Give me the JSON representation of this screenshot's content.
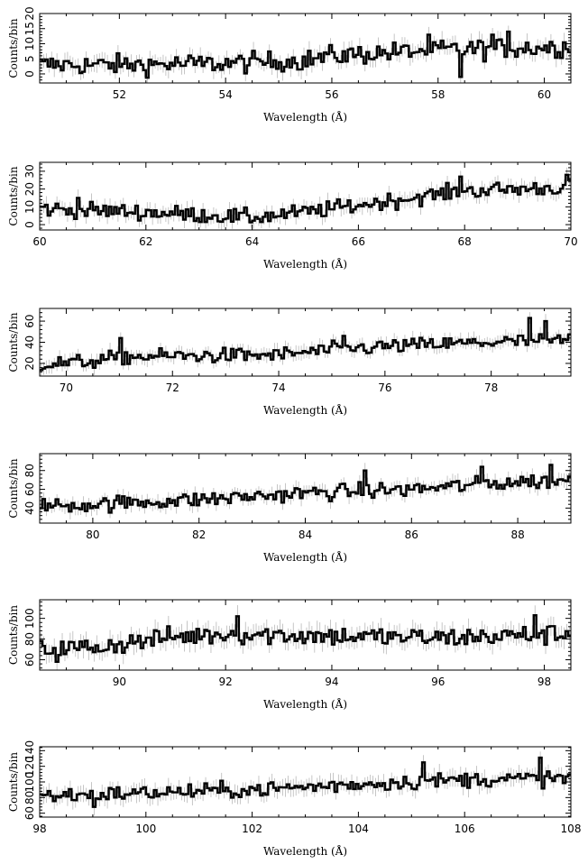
{
  "chart_data": [
    {
      "type": "line",
      "style": "step-histogram-with-error-bars",
      "xlabel": "Wavelength (Å)",
      "ylabel": "Counts/bin",
      "xlim": [
        50.5,
        60.5
      ],
      "ylim": [
        -3,
        20
      ],
      "x_ticks": [
        52,
        54,
        56,
        58,
        60
      ],
      "y_ticks": [
        0,
        5,
        10,
        15,
        20
      ],
      "y_tick_labels": [
        "0",
        "5",
        "10",
        "15",
        "20"
      ],
      "bin_width": 0.05,
      "trend": [
        [
          50.5,
          3
        ],
        [
          52,
          3
        ],
        [
          54,
          3.5
        ],
        [
          55.5,
          4.5
        ],
        [
          56,
          6
        ],
        [
          58,
          8
        ],
        [
          60.5,
          9
        ]
      ],
      "noise": 2.4,
      "errors": 2.6,
      "spikes": [
        [
          57.8,
          13
        ],
        [
          59.0,
          13
        ],
        [
          59.3,
          14
        ],
        [
          58.4,
          -1
        ]
      ]
    },
    {
      "type": "line",
      "style": "step-histogram-with-error-bars",
      "xlabel": "Wavelength (Å)",
      "ylabel": "Counts/bin",
      "xlim": [
        60,
        70
      ],
      "ylim": [
        -3,
        35
      ],
      "x_ticks": [
        60,
        62,
        64,
        66,
        68,
        70
      ],
      "y_ticks": [
        0,
        10,
        20,
        30
      ],
      "y_tick_labels": [
        "0",
        "10",
        "20",
        "30"
      ],
      "bin_width": 0.05,
      "trend": [
        [
          60,
          9
        ],
        [
          62,
          7
        ],
        [
          64,
          4
        ],
        [
          65,
          7
        ],
        [
          66,
          11
        ],
        [
          68,
          19
        ],
        [
          70,
          21
        ]
      ],
      "noise": 3.2,
      "errors": 4,
      "spikes": [
        [
          67.9,
          27
        ],
        [
          69.9,
          28
        ],
        [
          60.7,
          15
        ]
      ]
    },
    {
      "type": "line",
      "style": "step-histogram-with-error-bars",
      "xlabel": "Wavelength (Å)",
      "ylabel": "Counts/bin",
      "xlim": [
        69.5,
        79.5
      ],
      "ylim": [
        8,
        72
      ],
      "x_ticks": [
        70,
        72,
        74,
        76,
        78
      ],
      "y_ticks": [
        20,
        40,
        60
      ],
      "y_tick_labels": [
        "20",
        "40",
        "60"
      ],
      "bin_width": 0.05,
      "trend": [
        [
          69.5,
          19
        ],
        [
          70.5,
          22
        ],
        [
          71,
          26
        ],
        [
          72,
          27
        ],
        [
          74,
          28
        ],
        [
          75,
          33
        ],
        [
          76,
          36
        ],
        [
          78,
          40
        ],
        [
          79.5,
          42
        ]
      ],
      "noise": 5,
      "errors": 6,
      "spikes": [
        [
          71.0,
          44
        ],
        [
          78.7,
          63
        ],
        [
          79.0,
          60
        ],
        [
          75.2,
          46
        ]
      ]
    },
    {
      "type": "line",
      "style": "step-histogram-with-error-bars",
      "xlabel": "Wavelength (Å)",
      "ylabel": "Counts/bin",
      "xlim": [
        79,
        89
      ],
      "ylim": [
        24,
        98
      ],
      "x_ticks": [
        80,
        82,
        84,
        86,
        88
      ],
      "y_ticks": [
        40,
        60,
        80
      ],
      "y_tick_labels": [
        "40",
        "60",
        "80"
      ],
      "bin_width": 0.05,
      "trend": [
        [
          79,
          42
        ],
        [
          80,
          44
        ],
        [
          82,
          49
        ],
        [
          84,
          56
        ],
        [
          86,
          60
        ],
        [
          88,
          68
        ],
        [
          89,
          69
        ]
      ],
      "noise": 6,
      "errors": 7,
      "spikes": [
        [
          88.6,
          86
        ],
        [
          85.1,
          80
        ],
        [
          87.3,
          84
        ]
      ]
    },
    {
      "type": "line",
      "style": "step-histogram-with-error-bars",
      "xlabel": "Wavelength (Å)",
      "ylabel": "Counts/bin",
      "xlim": [
        88.5,
        98.5
      ],
      "ylim": [
        50,
        118
      ],
      "x_ticks": [
        90,
        92,
        94,
        96,
        98
      ],
      "y_ticks": [
        60,
        80,
        100
      ],
      "y_tick_labels": [
        "60",
        "80",
        "100"
      ],
      "bin_width": 0.05,
      "trend": [
        [
          88.5,
          70
        ],
        [
          89.5,
          72
        ],
        [
          91,
          82
        ],
        [
          92,
          85
        ],
        [
          94,
          83
        ],
        [
          96,
          81
        ],
        [
          98.5,
          85
        ]
      ],
      "noise": 7,
      "errors": 9,
      "spikes": [
        [
          92.2,
          102
        ],
        [
          88.8,
          58
        ],
        [
          97.8,
          103
        ]
      ]
    },
    {
      "type": "line",
      "style": "step-histogram-with-error-bars",
      "xlabel": "Wavelength (Å)",
      "ylabel": "Counts/bin",
      "xlim": [
        98,
        108
      ],
      "ylim": [
        55,
        145
      ],
      "x_ticks": [
        98,
        100,
        102,
        104,
        106,
        108
      ],
      "y_ticks": [
        60,
        80,
        100,
        120,
        140
      ],
      "y_tick_labels": [
        "60",
        "80",
        "100",
        "120",
        "140"
      ],
      "bin_width": 0.05,
      "trend": [
        [
          98,
          82
        ],
        [
          100,
          86
        ],
        [
          102,
          90
        ],
        [
          104,
          97
        ],
        [
          106,
          103
        ],
        [
          108,
          105
        ]
      ],
      "noise": 7,
      "errors": 10,
      "spikes": [
        [
          107.4,
          131
        ],
        [
          99.0,
          68
        ],
        [
          105.2,
          125
        ]
      ]
    }
  ]
}
